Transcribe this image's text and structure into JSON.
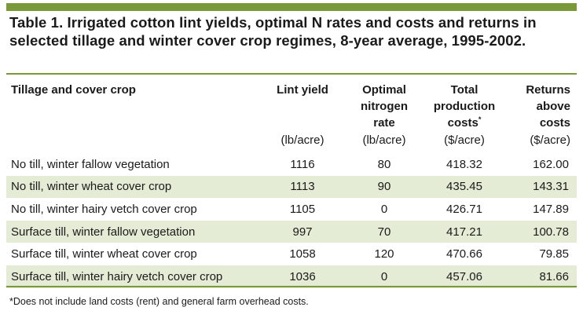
{
  "title": "Table 1. Irrigated cotton lint yields, optimal N rates and costs and returns in selected tillage and winter cover crop regimes, 8-year average, 1995-2002.",
  "colors": {
    "accent": "#7a9a3a",
    "row_shade": "#e4ecd6"
  },
  "table": {
    "headers": {
      "c0": "Tillage and cover crop",
      "c1": [
        "Lint yield"
      ],
      "c2": [
        "Optimal",
        "nitrogen",
        "rate"
      ],
      "c3": [
        "Total",
        "production",
        "costs"
      ],
      "c3_marker": "*",
      "c4": [
        "Returns",
        "above",
        "costs"
      ]
    },
    "units": [
      "(lb/acre)",
      "(lb/acre)",
      "($/acre)",
      "($/acre)"
    ],
    "rows": [
      [
        "No till, winter fallow vegetation",
        "1116",
        "80",
        "418.32",
        "162.00"
      ],
      [
        "No till, winter wheat cover crop",
        "1113",
        "90",
        "435.45",
        "143.31"
      ],
      [
        "No till, winter hairy vetch cover crop",
        "1105",
        "0",
        "426.71",
        "147.89"
      ],
      [
        "Surface till, winter fallow vegetation",
        "997",
        "70",
        "417.21",
        "100.78"
      ],
      [
        "Surface till, winter wheat cover crop",
        "1058",
        "120",
        "470.66",
        "79.85"
      ],
      [
        "Surface till, winter hairy vetch cover crop",
        "1036",
        "0",
        "457.06",
        "81.66"
      ]
    ]
  },
  "footnote": "*Does not include land costs (rent) and general farm overhead costs."
}
